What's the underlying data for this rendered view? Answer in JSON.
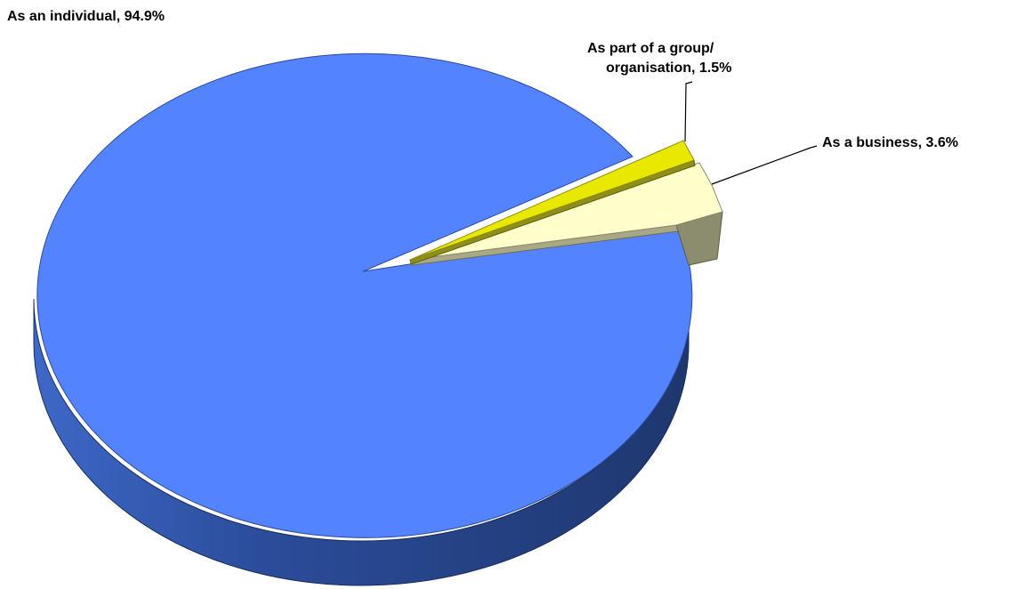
{
  "chart_data": {
    "type": "pie",
    "style": "3d-exploded",
    "slices": [
      {
        "label": "As an individual",
        "value": 94.9,
        "value_text": "94.9%",
        "color": "#5383FF"
      },
      {
        "label": "As part of a group/ organisation",
        "label_line1": "As part of a group/",
        "label_line2": "organisation, 1.5%",
        "value": 1.5,
        "value_text": "1.5%",
        "color": "#E8E800"
      },
      {
        "label": "As a business",
        "value": 3.6,
        "value_text": "3.6%",
        "color": "#FFFFCC"
      }
    ]
  },
  "labels": {
    "individual": "As an individual, 94.9%",
    "group_line1": "As part of a group/",
    "group_line2": "organisation, 1.5%",
    "business": "As a business, 3.6%"
  }
}
